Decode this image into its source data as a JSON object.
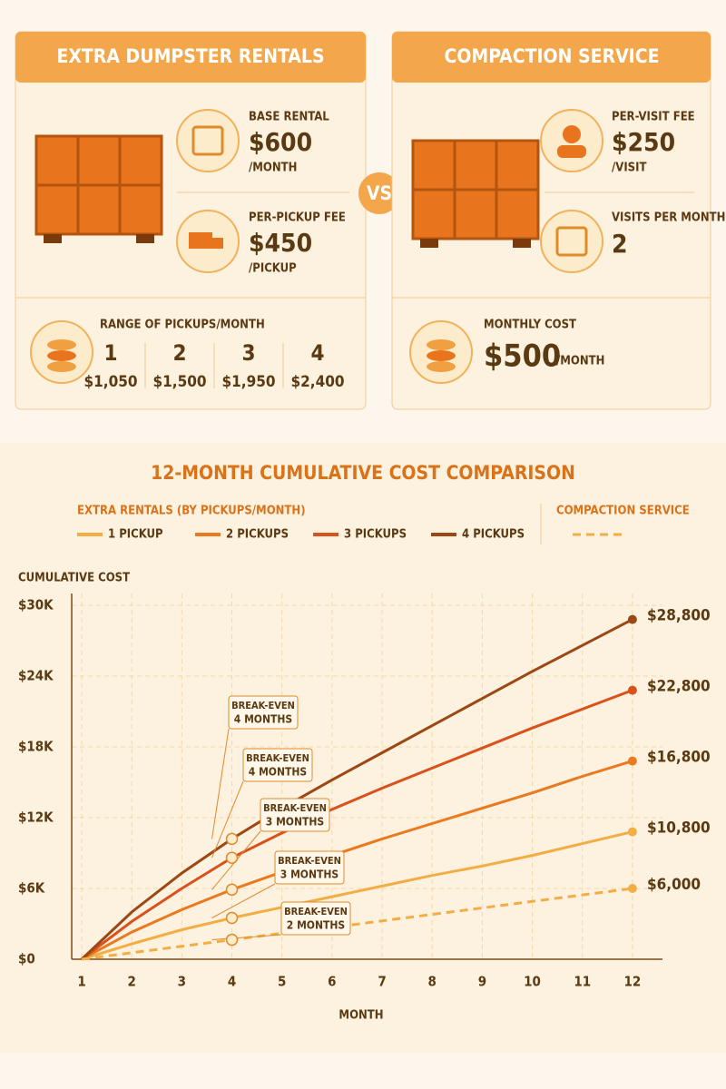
{
  "left_card": {
    "title": "EXTRA DUMPSTER RENTALS",
    "base_rental": {
      "label": "BASE RENTAL",
      "price": "$600",
      "unit": "/MONTH"
    },
    "per_pickup": {
      "label": "PER-PICKUP FEE",
      "price": "$450",
      "unit": "/PICKUP"
    },
    "range": {
      "label": "RANGE OF PICKUPS/MONTH",
      "options": [
        {
          "count": "1",
          "cost": "$1,050"
        },
        {
          "count": "2",
          "cost": "$1,500"
        },
        {
          "count": "3",
          "cost": "$1,950"
        },
        {
          "count": "4",
          "cost": "$2,400"
        }
      ]
    }
  },
  "versus": "VS",
  "right_card": {
    "title": "COMPACTION SERVICE",
    "per_visit": {
      "label": "PER-VISIT FEE",
      "price": "$250",
      "unit": "/VISIT"
    },
    "visits": {
      "label": "VISITS PER MONTH",
      "value": "2"
    },
    "monthly": {
      "label": "MONTHLY COST",
      "price": "$500",
      "unit": "/MONTH"
    }
  },
  "chart_data": {
    "type": "line",
    "title": "12-MONTH CUMULATIVE COST COMPARISON",
    "legend_title": "EXTRA RENTALS (BY PICKUPS/MONTH)",
    "y_label": "CUMULATIVE COST",
    "x_label": "MONTH",
    "x": [
      1,
      2,
      3,
      4,
      5,
      6,
      7,
      8,
      9,
      10,
      11,
      12
    ],
    "series": [
      {
        "name": "1 PICKUP",
        "color": "#f3ad45",
        "values": [
          0,
          1300,
          2500,
          3500,
          4400,
          5300,
          6200,
          7100,
          7900,
          8800,
          9800,
          10800
        ],
        "value_labels": [
          null,
          null,
          null,
          null,
          null,
          null,
          null,
          null,
          null,
          null,
          null,
          "$10,800"
        ]
      },
      {
        "name": "2 PICKUPS",
        "color": "#ea7a1f",
        "values": [
          0,
          2300,
          4200,
          5900,
          7400,
          8800,
          10200,
          11500,
          12800,
          14100,
          15500,
          16800
        ],
        "value_labels": [
          null,
          null,
          null,
          null,
          null,
          null,
          null,
          null,
          null,
          null,
          null,
          "$16,800"
        ]
      },
      {
        "name": "3 PICKUPS",
        "color": "#d9521d",
        "values": [
          0,
          3200,
          6000,
          8600,
          10700,
          12700,
          14500,
          16200,
          17900,
          19600,
          21200,
          22800
        ],
        "value_labels": [
          null,
          null,
          null,
          null,
          null,
          null,
          null,
          null,
          null,
          null,
          null,
          "$22,800"
        ]
      },
      {
        "name": "4 PICKUPS",
        "color": "#9c4814",
        "values": [
          0,
          4000,
          7300,
          10200,
          12800,
          15200,
          17500,
          19800,
          22100,
          24400,
          26600,
          28800
        ],
        "value_labels": [
          null,
          null,
          null,
          null,
          null,
          null,
          null,
          null,
          null,
          null,
          null,
          "$28,800"
        ]
      },
      {
        "name": "COMPACTION SERVICE",
        "color": "#f3ad45",
        "dashed": true,
        "values": [
          0,
          550,
          1100,
          1650,
          2200,
          2700,
          3250,
          3800,
          4350,
          4900,
          5450,
          6000
        ],
        "value_labels": [
          null,
          null,
          null,
          null,
          null,
          null,
          null,
          null,
          null,
          null,
          null,
          "$6,000"
        ]
      }
    ],
    "annotations": [
      {
        "label": "BREAK-EVEN",
        "detail": "4 MONTHS"
      },
      {
        "label": "BREAK-EVEN",
        "detail": "4 MONTHS"
      },
      {
        "label": "BREAK-EVEN",
        "detail": "3 MONTHS"
      },
      {
        "label": "BREAK-EVEN",
        "detail": "3 MONTHS"
      },
      {
        "label": "BREAK-EVEN",
        "detail": "2 MONTHS"
      }
    ],
    "xlim": [
      0.8,
      12.6
    ],
    "xticks": [
      1,
      2,
      3,
      4,
      5,
      6,
      7,
      8,
      9,
      10,
      11,
      12
    ],
    "ylim": [
      0,
      31000
    ],
    "yticks": [
      {
        "value": 0,
        "label": "$0"
      },
      {
        "value": 6000,
        "label": "$6K"
      },
      {
        "value": 12000,
        "label": "$12K"
      },
      {
        "value": 18000,
        "label": "$18K"
      },
      {
        "value": 24000,
        "label": "$24K"
      },
      {
        "value": 30000,
        "label": "$30K"
      }
    ],
    "grid": true
  }
}
